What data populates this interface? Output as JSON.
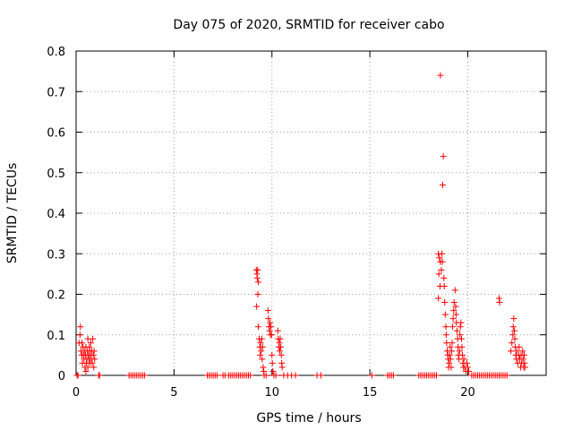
{
  "chart_data": {
    "type": "scatter",
    "title": "Day 075 of 2020, SRMTID for receiver cabo",
    "xlabel": "GPS time / hours",
    "ylabel": "SRMTID / TECUs",
    "xlim": [
      0,
      24
    ],
    "ylim": [
      0,
      0.8
    ],
    "xticks": [
      0,
      5,
      10,
      15,
      20
    ],
    "xtick_labels": [
      "0",
      "5",
      "10",
      "15",
      "20"
    ],
    "yticks": [
      0,
      0.1,
      0.2,
      0.3,
      0.4,
      0.5,
      0.6,
      0.7,
      0.8
    ],
    "ytick_labels": [
      "0",
      "0.1",
      "0.2",
      "0.3",
      "0.4",
      "0.5",
      "0.6",
      "0.7",
      "0.8"
    ],
    "grid": true,
    "marker": "+",
    "series": [
      {
        "name": "SRMTID",
        "color": "#ff0000",
        "points": [
          [
            0.05,
            0.0
          ],
          [
            0.1,
            0.0
          ],
          [
            0.15,
            0.08
          ],
          [
            0.2,
            0.1
          ],
          [
            0.22,
            0.12
          ],
          [
            0.25,
            0.06
          ],
          [
            0.3,
            0.05
          ],
          [
            0.32,
            0.03
          ],
          [
            0.35,
            0.07
          ],
          [
            0.38,
            0.05
          ],
          [
            0.4,
            0.04
          ],
          [
            0.42,
            0.06
          ],
          [
            0.45,
            0.02
          ],
          [
            0.48,
            0.05
          ],
          [
            0.5,
            0.07
          ],
          [
            0.52,
            0.03
          ],
          [
            0.55,
            0.04
          ],
          [
            0.58,
            0.06
          ],
          [
            0.6,
            0.02
          ],
          [
            0.62,
            0.05
          ],
          [
            0.65,
            0.04
          ],
          [
            0.68,
            0.07
          ],
          [
            0.7,
            0.03
          ],
          [
            0.72,
            0.05
          ],
          [
            0.75,
            0.08
          ],
          [
            0.78,
            0.04
          ],
          [
            0.8,
            0.06
          ],
          [
            0.82,
            0.03
          ],
          [
            0.85,
            0.09
          ],
          [
            0.88,
            0.05
          ],
          [
            0.9,
            0.02
          ],
          [
            0.92,
            0.06
          ],
          [
            0.95,
            0.04
          ],
          [
            0.3,
            0.08
          ],
          [
            0.5,
            0.01
          ],
          [
            0.6,
            0.09
          ],
          [
            0.7,
            0.06
          ],
          [
            1.15,
            0.0
          ],
          [
            1.2,
            0.0
          ],
          [
            2.7,
            0.0
          ],
          [
            2.8,
            0.0
          ],
          [
            2.9,
            0.0
          ],
          [
            3.0,
            0.0
          ],
          [
            3.1,
            0.0
          ],
          [
            3.2,
            0.0
          ],
          [
            3.3,
            0.0
          ],
          [
            3.4,
            0.0
          ],
          [
            3.5,
            0.0
          ],
          [
            6.7,
            0.0
          ],
          [
            6.8,
            0.0
          ],
          [
            6.9,
            0.0
          ],
          [
            7.0,
            0.0
          ],
          [
            7.1,
            0.0
          ],
          [
            7.2,
            0.0
          ],
          [
            7.5,
            0.0
          ],
          [
            7.6,
            0.0
          ],
          [
            7.8,
            0.0
          ],
          [
            7.9,
            0.0
          ],
          [
            8.0,
            0.0
          ],
          [
            8.1,
            0.0
          ],
          [
            8.2,
            0.0
          ],
          [
            8.3,
            0.0
          ],
          [
            8.4,
            0.0
          ],
          [
            8.5,
            0.0
          ],
          [
            8.6,
            0.0
          ],
          [
            8.7,
            0.0
          ],
          [
            8.8,
            0.0
          ],
          [
            8.9,
            0.0
          ],
          [
            9.2,
            0.26
          ],
          [
            9.23,
            0.25
          ],
          [
            9.25,
            0.24
          ],
          [
            9.27,
            0.26
          ],
          [
            9.3,
            0.23
          ],
          [
            9.28,
            0.2
          ],
          [
            9.22,
            0.17
          ],
          [
            9.3,
            0.12
          ],
          [
            9.35,
            0.09
          ],
          [
            9.38,
            0.07
          ],
          [
            9.4,
            0.05
          ],
          [
            9.42,
            0.08
          ],
          [
            9.45,
            0.06
          ],
          [
            9.48,
            0.09
          ],
          [
            9.5,
            0.04
          ],
          [
            9.52,
            0.07
          ],
          [
            9.55,
            0.02
          ],
          [
            9.58,
            0.01
          ],
          [
            9.6,
            0.0
          ],
          [
            9.7,
            0.0
          ],
          [
            9.8,
            0.16
          ],
          [
            9.82,
            0.14
          ],
          [
            9.85,
            0.12
          ],
          [
            9.88,
            0.11
          ],
          [
            9.9,
            0.13
          ],
          [
            9.92,
            0.1
          ],
          [
            9.95,
            0.12
          ],
          [
            9.98,
            0.1
          ],
          [
            10.0,
            0.05
          ],
          [
            10.02,
            0.03
          ],
          [
            10.05,
            0.01
          ],
          [
            10.1,
            0.0
          ],
          [
            10.2,
            0.0
          ],
          [
            10.3,
            0.11
          ],
          [
            10.32,
            0.09
          ],
          [
            10.35,
            0.07
          ],
          [
            10.38,
            0.08
          ],
          [
            10.4,
            0.06
          ],
          [
            10.42,
            0.09
          ],
          [
            10.45,
            0.07
          ],
          [
            10.48,
            0.05
          ],
          [
            10.5,
            0.03
          ],
          [
            10.52,
            0.02
          ],
          [
            10.6,
            0.0
          ],
          [
            10.8,
            0.0
          ],
          [
            11.0,
            0.0
          ],
          [
            11.2,
            0.0
          ],
          [
            12.3,
            0.0
          ],
          [
            12.5,
            0.0
          ],
          [
            15.1,
            0.0
          ],
          [
            15.9,
            0.0
          ],
          [
            16.0,
            0.0
          ],
          [
            16.1,
            0.0
          ],
          [
            16.2,
            0.0
          ],
          [
            17.5,
            0.0
          ],
          [
            17.6,
            0.0
          ],
          [
            17.7,
            0.0
          ],
          [
            17.8,
            0.0
          ],
          [
            17.9,
            0.0
          ],
          [
            18.0,
            0.0
          ],
          [
            18.1,
            0.0
          ],
          [
            18.2,
            0.0
          ],
          [
            18.3,
            0.0
          ],
          [
            18.4,
            0.0
          ],
          [
            18.5,
            0.3
          ],
          [
            18.55,
            0.29
          ],
          [
            18.6,
            0.28
          ],
          [
            18.52,
            0.25
          ],
          [
            18.58,
            0.22
          ],
          [
            18.5,
            0.19
          ],
          [
            18.6,
            0.74
          ],
          [
            18.75,
            0.54
          ],
          [
            18.72,
            0.47
          ],
          [
            18.68,
            0.3
          ],
          [
            18.7,
            0.28
          ],
          [
            18.65,
            0.26
          ],
          [
            18.78,
            0.24
          ],
          [
            18.8,
            0.22
          ],
          [
            18.82,
            0.18
          ],
          [
            18.85,
            0.15
          ],
          [
            18.88,
            0.12
          ],
          [
            18.9,
            0.1
          ],
          [
            18.92,
            0.08
          ],
          [
            18.95,
            0.06
          ],
          [
            18.98,
            0.05
          ],
          [
            19.0,
            0.04
          ],
          [
            19.02,
            0.02
          ],
          [
            19.05,
            0.03
          ],
          [
            19.08,
            0.05
          ],
          [
            19.1,
            0.07
          ],
          [
            19.12,
            0.04
          ],
          [
            19.15,
            0.02
          ],
          [
            19.18,
            0.06
          ],
          [
            19.2,
            0.08
          ],
          [
            19.22,
            0.12
          ],
          [
            19.25,
            0.14
          ],
          [
            19.28,
            0.16
          ],
          [
            19.3,
            0.18
          ],
          [
            19.35,
            0.21
          ],
          [
            19.38,
            0.17
          ],
          [
            19.4,
            0.15
          ],
          [
            19.42,
            0.13
          ],
          [
            19.45,
            0.11
          ],
          [
            19.48,
            0.09
          ],
          [
            19.5,
            0.07
          ],
          [
            19.52,
            0.05
          ],
          [
            19.55,
            0.04
          ],
          [
            19.58,
            0.06
          ],
          [
            19.6,
            0.1
          ],
          [
            19.62,
            0.12
          ],
          [
            19.65,
            0.13
          ],
          [
            19.68,
            0.09
          ],
          [
            19.7,
            0.07
          ],
          [
            19.72,
            0.05
          ],
          [
            19.75,
            0.03
          ],
          [
            19.78,
            0.02
          ],
          [
            19.8,
            0.04
          ],
          [
            19.85,
            0.02
          ],
          [
            19.9,
            0.01
          ],
          [
            19.95,
            0.03
          ],
          [
            20.0,
            0.02
          ],
          [
            20.05,
            0.01
          ],
          [
            20.2,
            0.0
          ],
          [
            20.3,
            0.0
          ],
          [
            20.4,
            0.0
          ],
          [
            20.5,
            0.0
          ],
          [
            20.6,
            0.0
          ],
          [
            20.7,
            0.0
          ],
          [
            20.8,
            0.0
          ],
          [
            20.9,
            0.0
          ],
          [
            21.0,
            0.0
          ],
          [
            21.1,
            0.0
          ],
          [
            21.2,
            0.0
          ],
          [
            21.3,
            0.0
          ],
          [
            21.4,
            0.0
          ],
          [
            21.5,
            0.0
          ],
          [
            21.6,
            0.0
          ],
          [
            21.7,
            0.0
          ],
          [
            21.8,
            0.0
          ],
          [
            21.9,
            0.0
          ],
          [
            22.0,
            0.0
          ],
          [
            21.6,
            0.19
          ],
          [
            21.62,
            0.18
          ],
          [
            22.2,
            0.06
          ],
          [
            22.25,
            0.08
          ],
          [
            22.3,
            0.1
          ],
          [
            22.32,
            0.12
          ],
          [
            22.35,
            0.14
          ],
          [
            22.38,
            0.11
          ],
          [
            22.4,
            0.09
          ],
          [
            22.42,
            0.07
          ],
          [
            22.45,
            0.05
          ],
          [
            22.48,
            0.04
          ],
          [
            22.5,
            0.06
          ],
          [
            22.55,
            0.03
          ],
          [
            22.6,
            0.05
          ],
          [
            22.62,
            0.07
          ],
          [
            22.65,
            0.04
          ],
          [
            22.7,
            0.02
          ],
          [
            22.72,
            0.05
          ],
          [
            22.75,
            0.03
          ],
          [
            22.8,
            0.06
          ],
          [
            22.82,
            0.04
          ],
          [
            22.85,
            0.02
          ],
          [
            22.88,
            0.05
          ],
          [
            22.9,
            0.03
          ],
          [
            22.92,
            0.02
          ]
        ]
      }
    ]
  }
}
